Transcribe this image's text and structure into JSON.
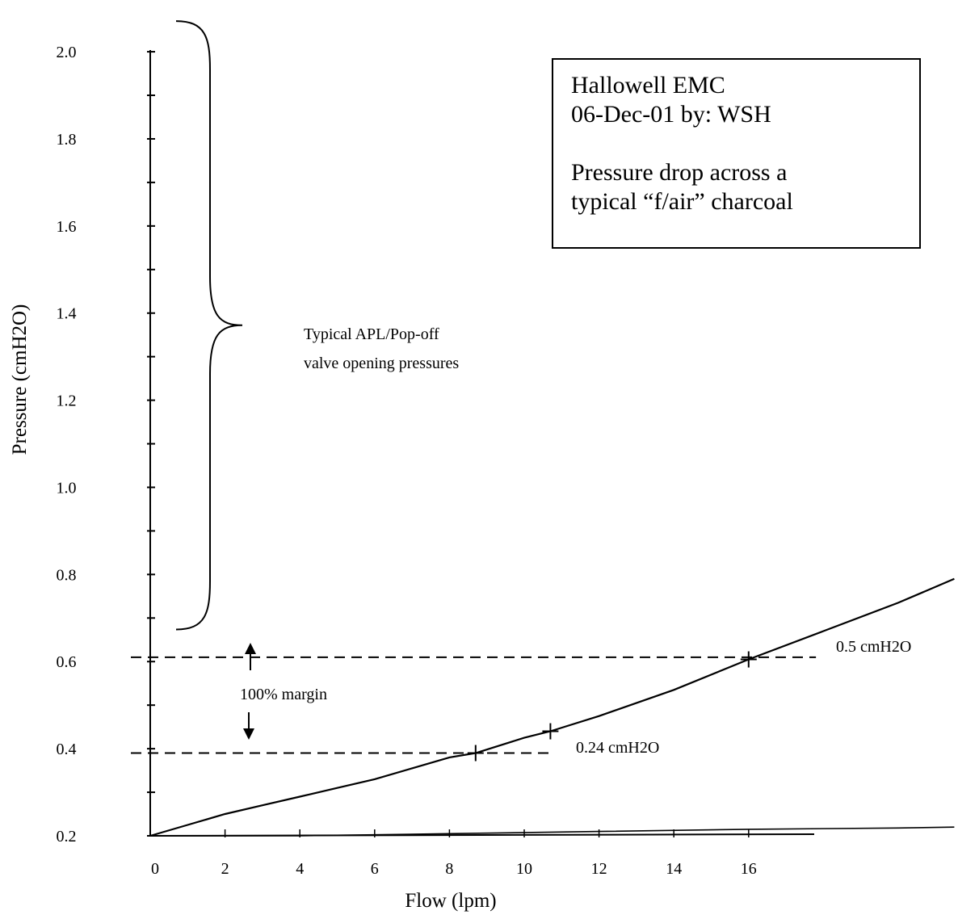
{
  "info_box": {
    "line1": "Hallowell EMC",
    "line2": "06-Dec-01 by: WSH",
    "line3": "Pressure drop across a",
    "line4": "typical “f/air” charcoal"
  },
  "chart_data": {
    "type": "line",
    "xlabel": "Flow (lpm)",
    "ylabel": "Pressure (cmH2O)",
    "x_ticks": [
      0,
      2,
      4,
      6,
      8,
      10,
      12,
      14,
      16
    ],
    "y_ticks": [
      0.2,
      0.4,
      0.6,
      0.8,
      1.0,
      1.2,
      1.4,
      1.6,
      1.8,
      2.0
    ],
    "xlim": [
      0,
      22
    ],
    "ylim": [
      0.2,
      2.0
    ],
    "grid": false,
    "series": [
      {
        "x": [
          0,
          1,
          2,
          3,
          4,
          5,
          6,
          7,
          8,
          8.7,
          10,
          10.7,
          12,
          14,
          16,
          18,
          20,
          21.5
        ],
        "y": [
          0.2,
          0.225,
          0.25,
          0.27,
          0.29,
          0.31,
          0.33,
          0.355,
          0.38,
          0.39,
          0.425,
          0.44,
          0.475,
          0.535,
          0.605,
          0.67,
          0.735,
          0.79
        ]
      },
      {
        "x": [
          0,
          4,
          8,
          12,
          16,
          20,
          21.5
        ],
        "y": [
          0.2,
          0.2,
          0.205,
          0.21,
          0.215,
          0.218,
          0.22
        ]
      }
    ],
    "reference_lines": [
      {
        "y": 0.61,
        "x_end": 17.8,
        "label": "0.5 cmH2O"
      },
      {
        "y": 0.39,
        "x_end": 10.8,
        "label": "0.24 cmH2O"
      }
    ],
    "annotations": {
      "brace_label_line1": "Typical APL/Pop-off",
      "brace_label_line2": "valve opening pressures",
      "margin_label": "100% margin"
    },
    "brace_range": [
      0.72,
      2.0
    ]
  }
}
